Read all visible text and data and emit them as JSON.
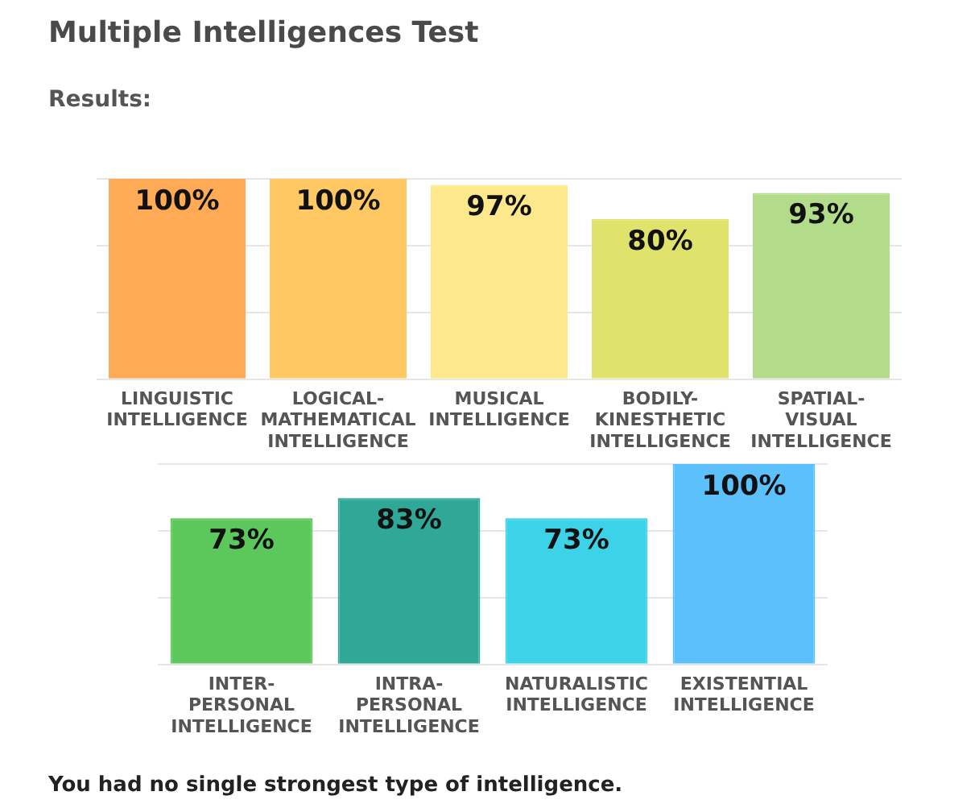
{
  "chart_data": [
    {
      "type": "bar",
      "title": "Multiple Intelligences Test",
      "subtitle": "Results:",
      "categories": [
        "LINGUISTIC INTELLIGENCE",
        "LOGICAL-MATHEMATICAL INTELLIGENCE",
        "MUSICAL INTELLIGENCE",
        "BODILY-KINESTHETIC INTELLIGENCE",
        "SPATIAL-VISUAL INTELLIGENCE"
      ],
      "values": [
        100,
        100,
        97,
        80,
        93
      ],
      "colors": [
        "#ffaa55",
        "#ffc862",
        "#fde98c",
        "#dfe36c",
        "#b2dc8a"
      ],
      "value_labels": [
        "100%",
        "100%",
        "97%",
        "80%",
        "93%"
      ],
      "ylim": [
        0,
        100
      ],
      "yticks": [
        {
          "value": 0,
          "label": null
        },
        {
          "value": 33.3,
          "label": null
        },
        {
          "value": 66.7,
          "label": null
        },
        {
          "value": 100,
          "label": null
        }
      ],
      "grid": "y",
      "tick_labels": "x",
      "legend": false
    },
    {
      "type": "bar",
      "categories": [
        "INTER-PERSONAL INTELLIGENCE",
        "INTRA-PERSONAL INTELLIGENCE",
        "NATURALISTIC INTELLIGENCE",
        "EXISTENTIAL INTELLIGENCE"
      ],
      "values": [
        73,
        83,
        73,
        100
      ],
      "colors": [
        "#5cc85c",
        "#2fa898",
        "#3cd2e8",
        "#5cc0fa"
      ],
      "value_labels": [
        "73%",
        "83%",
        "73%",
        "100%"
      ],
      "ylim": [
        0,
        100
      ],
      "yticks": [
        {
          "value": 0,
          "label": null
        },
        {
          "value": 33.3,
          "label": null
        },
        {
          "value": 66.7,
          "label": null
        },
        {
          "value": 100,
          "label": null
        }
      ],
      "grid": "y",
      "tick_labels": "x",
      "legend": false,
      "annotations": [
        "You had no single strongest type of intelligence."
      ]
    }
  ]
}
